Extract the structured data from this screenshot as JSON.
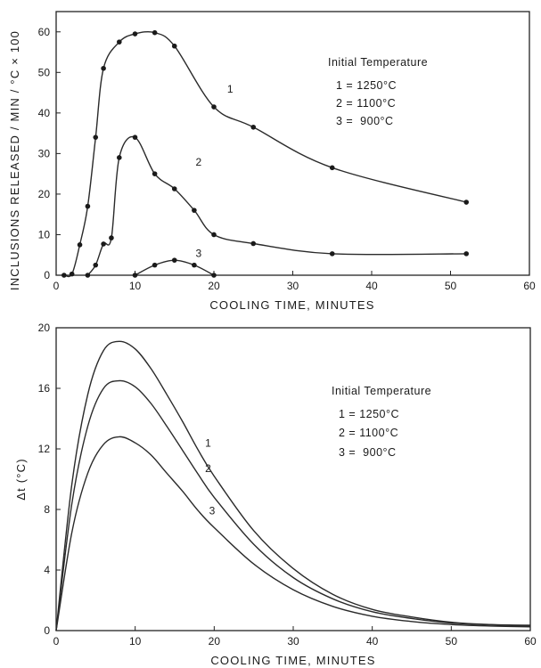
{
  "chart_data": [
    {
      "type": "line",
      "xlabel": "COOLING TIME, MINUTES",
      "ylabel": "INCLUSIONS RELEASED / MIN / °C × 100",
      "xlim": [
        0,
        60
      ],
      "ylim": [
        0,
        65
      ],
      "xticks": [
        0,
        10,
        20,
        30,
        40,
        50,
        60
      ],
      "yticks": [
        0,
        10,
        20,
        30,
        40,
        50,
        60
      ],
      "grid": false,
      "legend": {
        "title": "Initial Temperature",
        "entries": [
          "1 = 1250°C",
          "2 = 1100°C",
          "3 =  900°C"
        ],
        "placement": "top-right"
      },
      "series": [
        {
          "name": "1",
          "x": [
            1,
            2,
            3,
            4,
            5,
            6,
            8,
            10,
            12.5,
            15,
            20,
            25,
            35,
            52
          ],
          "values": [
            0,
            0.3,
            7.5,
            17,
            34,
            51,
            57.5,
            59.5,
            59.8,
            56.5,
            41.5,
            36.5,
            26.5,
            18
          ]
        },
        {
          "name": "2",
          "x": [
            4,
            5,
            6,
            7,
            8,
            10,
            12.5,
            15,
            17.5,
            20,
            25,
            35,
            52
          ],
          "values": [
            0,
            2.5,
            7.7,
            9.2,
            29,
            34,
            25,
            21.3,
            16,
            10,
            7.8,
            5.3,
            5.3
          ]
        },
        {
          "name": "3",
          "x": [
            10,
            12.5,
            15,
            17.5,
            20
          ],
          "values": [
            0,
            2.5,
            3.7,
            2.5,
            0
          ]
        }
      ]
    },
    {
      "type": "line",
      "xlabel": "COOLING TIME, MINUTES",
      "ylabel": "Δt (°C)",
      "xlim": [
        0,
        60
      ],
      "ylim": [
        0,
        20
      ],
      "xticks": [
        0,
        10,
        20,
        30,
        40,
        50,
        60
      ],
      "yticks": [
        0,
        4,
        8,
        12,
        16,
        20
      ],
      "grid": false,
      "legend": {
        "title": "Initial Temperature",
        "entries": [
          "1 = 1250°C",
          "2 = 1100°C",
          "3 =  900°C"
        ],
        "placement": "right"
      },
      "series": [
        {
          "name": "1",
          "x": [
            0,
            2,
            4,
            6,
            8,
            10,
            12,
            14,
            16,
            18,
            20,
            25,
            30,
            35,
            40,
            45,
            50,
            55,
            60
          ],
          "values": [
            0,
            9.7,
            15.6,
            18.5,
            19.1,
            18.6,
            17.3,
            15.6,
            13.8,
            11.9,
            10.2,
            6.6,
            4.1,
            2.4,
            1.4,
            0.9,
            0.55,
            0.4,
            0.35
          ]
        },
        {
          "name": "2",
          "x": [
            0,
            2,
            4,
            6,
            8,
            10,
            12,
            14,
            16,
            18,
            20,
            25,
            30,
            35,
            40,
            45,
            50,
            55,
            60
          ],
          "values": [
            0,
            8.4,
            13.5,
            16.0,
            16.5,
            16.1,
            15.0,
            13.5,
            11.9,
            10.3,
            8.8,
            5.7,
            3.5,
            2.1,
            1.25,
            0.8,
            0.5,
            0.38,
            0.3
          ]
        },
        {
          "name": "3",
          "x": [
            0,
            2,
            4,
            6,
            8,
            10,
            12,
            14,
            16,
            18,
            20,
            25,
            30,
            35,
            40,
            45,
            50,
            55,
            60
          ],
          "values": [
            0,
            6.5,
            10.4,
            12.3,
            12.8,
            12.4,
            11.6,
            10.4,
            9.2,
            7.9,
            6.8,
            4.4,
            2.7,
            1.6,
            0.95,
            0.6,
            0.4,
            0.3,
            0.25
          ]
        }
      ],
      "curve_labels": [
        {
          "text": "1",
          "x": 17.5
        },
        {
          "text": "2",
          "x": 17.5
        },
        {
          "text": "3",
          "x": 18
        }
      ]
    }
  ]
}
